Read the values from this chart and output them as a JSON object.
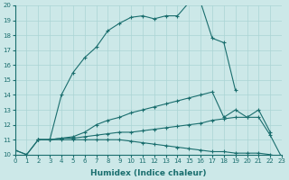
{
  "xlabel": "Humidex (Indice chaleur)",
  "xlim": [
    0,
    23
  ],
  "ylim": [
    10,
    20
  ],
  "background_color": "#cce8e8",
  "grid_color": "#aad4d4",
  "line_color": "#1a6e6e",
  "lines": [
    {
      "x": [
        0,
        1,
        2,
        3,
        4,
        5,
        6,
        7,
        8,
        9,
        10,
        11,
        12,
        13,
        14,
        15,
        16,
        17,
        18,
        19
      ],
      "y": [
        10.3,
        10.0,
        11.0,
        11.0,
        14.0,
        15.5,
        16.5,
        17.2,
        18.3,
        18.8,
        19.2,
        19.3,
        19.1,
        19.3,
        19.3,
        20.2,
        20.2,
        17.8,
        17.5,
        14.3
      ],
      "marker": "+",
      "markersize": 3.5
    },
    {
      "x": [
        2,
        3,
        4,
        5,
        6,
        7,
        8,
        9,
        10,
        11,
        12,
        13,
        14,
        15,
        16,
        17,
        18,
        19,
        20,
        21,
        22
      ],
      "y": [
        11.0,
        11.0,
        11.1,
        11.2,
        11.5,
        12.0,
        12.3,
        12.5,
        12.8,
        13.0,
        13.2,
        13.4,
        13.6,
        13.8,
        14.0,
        14.2,
        12.5,
        13.0,
        12.5,
        13.0,
        11.5
      ],
      "marker": "+",
      "markersize": 3.5
    },
    {
      "x": [
        2,
        3,
        4,
        5,
        6,
        7,
        8,
        9,
        10,
        11,
        12,
        13,
        14,
        15,
        16,
        17,
        18,
        19,
        20,
        21,
        22,
        23
      ],
      "y": [
        11.0,
        11.0,
        11.1,
        11.1,
        11.2,
        11.3,
        11.4,
        11.5,
        11.5,
        11.6,
        11.7,
        11.8,
        11.9,
        12.0,
        12.1,
        12.3,
        12.4,
        12.5,
        12.5,
        12.5,
        11.3,
        9.8
      ],
      "marker": "+",
      "markersize": 3.5
    },
    {
      "x": [
        0,
        1,
        2,
        3,
        4,
        5,
        6,
        7,
        8,
        9,
        10,
        11,
        12,
        13,
        14,
        15,
        16,
        17,
        18,
        19,
        20,
        21,
        22,
        23
      ],
      "y": [
        10.3,
        10.0,
        11.0,
        11.0,
        11.0,
        11.0,
        11.0,
        11.0,
        11.0,
        11.0,
        10.9,
        10.8,
        10.7,
        10.6,
        10.5,
        10.4,
        10.3,
        10.2,
        10.2,
        10.1,
        10.1,
        10.1,
        10.0,
        9.8
      ],
      "marker": "+",
      "markersize": 3.5
    }
  ],
  "xticks": [
    0,
    1,
    2,
    3,
    4,
    5,
    6,
    7,
    8,
    9,
    10,
    11,
    12,
    13,
    14,
    15,
    16,
    17,
    18,
    19,
    20,
    21,
    22,
    23
  ],
  "yticks": [
    10,
    11,
    12,
    13,
    14,
    15,
    16,
    17,
    18,
    19,
    20
  ],
  "tick_fontsize": 5.0,
  "xlabel_fontsize": 6.5
}
